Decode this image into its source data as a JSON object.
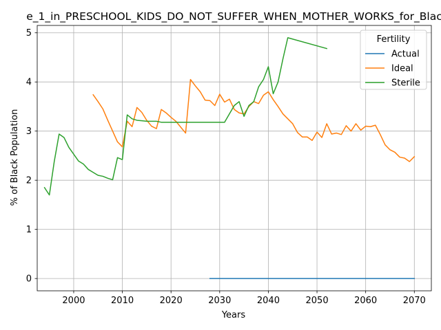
{
  "chart_data": {
    "type": "line",
    "title": "e_1_in_PRESCHOOL_KIDS_DO_NOT_SUFFER_WHEN_MOTHER_WORKS_for_Blac",
    "xlabel": "Years",
    "ylabel": "% of Black Population",
    "xlim": [
      1992.5,
      2073.5
    ],
    "ylim": [
      -0.25,
      5.15
    ],
    "xticks": [
      2000,
      2010,
      2020,
      2030,
      2040,
      2050,
      2060,
      2070
    ],
    "yticks": [
      0,
      1,
      2,
      3,
      4,
      5
    ],
    "grid": true,
    "legend": {
      "title": "Fertility",
      "position": "top-right"
    },
    "series": [
      {
        "name": "Actual",
        "color": "#1f77b4",
        "x": [
          2028,
          2030,
          2035,
          2040,
          2045,
          2050,
          2055,
          2060,
          2065,
          2070
        ],
        "y": [
          0,
          0,
          0,
          0,
          0,
          0,
          0,
          0,
          0,
          0
        ]
      },
      {
        "name": "Ideal",
        "color": "#ff7f0e",
        "x": [
          2004,
          2005,
          2006,
          2007,
          2008,
          2009,
          2010,
          2011,
          2012,
          2013,
          2014,
          2015,
          2016,
          2017,
          2018,
          2019,
          2020,
          2021,
          2022,
          2023,
          2024,
          2025,
          2026,
          2027,
          2028,
          2029,
          2030,
          2031,
          2032,
          2033,
          2034,
          2035,
          2036,
          2037,
          2038,
          2039,
          2040,
          2041,
          2042,
          2043,
          2044,
          2045,
          2046,
          2047,
          2048,
          2049,
          2050,
          2051,
          2052,
          2053,
          2054,
          2055,
          2056,
          2057,
          2058,
          2059,
          2060,
          2061,
          2062,
          2063,
          2064,
          2065,
          2066,
          2067,
          2068,
          2069,
          2070
        ],
        "y": [
          3.74,
          3.6,
          3.45,
          3.22,
          3.0,
          2.78,
          2.68,
          3.2,
          3.09,
          3.48,
          3.38,
          3.22,
          3.1,
          3.05,
          3.44,
          3.37,
          3.28,
          3.2,
          3.08,
          2.96,
          4.05,
          3.92,
          3.8,
          3.63,
          3.62,
          3.52,
          3.75,
          3.59,
          3.65,
          3.44,
          3.37,
          3.35,
          3.5,
          3.6,
          3.56,
          3.73,
          3.8,
          3.64,
          3.5,
          3.35,
          3.25,
          3.15,
          2.97,
          2.88,
          2.88,
          2.81,
          2.98,
          2.87,
          3.15,
          2.94,
          2.96,
          2.93,
          3.11,
          3.0,
          3.15,
          3.02,
          3.1,
          3.09,
          3.12,
          2.93,
          2.72,
          2.62,
          2.57,
          2.47,
          2.45,
          2.38,
          2.48
        ]
      },
      {
        "name": "Sterile",
        "color": "#2ca02c",
        "x": [
          1994,
          1995,
          1996,
          1997,
          1998,
          1999,
          2000,
          2001,
          2002,
          2003,
          2004,
          2005,
          2006,
          2007,
          2008,
          2009,
          2010,
          2011,
          2012,
          2013,
          2014,
          2015,
          2016,
          2017,
          2018,
          2019,
          2020,
          2021,
          2022,
          2023,
          2024,
          2025,
          2026,
          2027,
          2028,
          2029,
          2030,
          2031,
          2032,
          2033,
          2034,
          2035,
          2036,
          2037,
          2038,
          2039,
          2040,
          2041,
          2042,
          2043,
          2044,
          2052
        ],
        "y": [
          1.85,
          1.7,
          2.38,
          2.94,
          2.87,
          2.67,
          2.53,
          2.39,
          2.33,
          2.22,
          2.16,
          2.1,
          2.08,
          2.04,
          2.01,
          2.46,
          2.42,
          3.33,
          3.25,
          3.22,
          3.21,
          3.2,
          3.2,
          3.2,
          3.18,
          3.18,
          3.18,
          3.18,
          3.18,
          3.18,
          3.18,
          3.18,
          3.18,
          3.18,
          3.18,
          3.18,
          3.18,
          3.18,
          3.35,
          3.52,
          3.6,
          3.3,
          3.52,
          3.6,
          3.9,
          4.05,
          4.31,
          3.76,
          4.0,
          4.47,
          4.9,
          4.68
        ]
      }
    ]
  }
}
